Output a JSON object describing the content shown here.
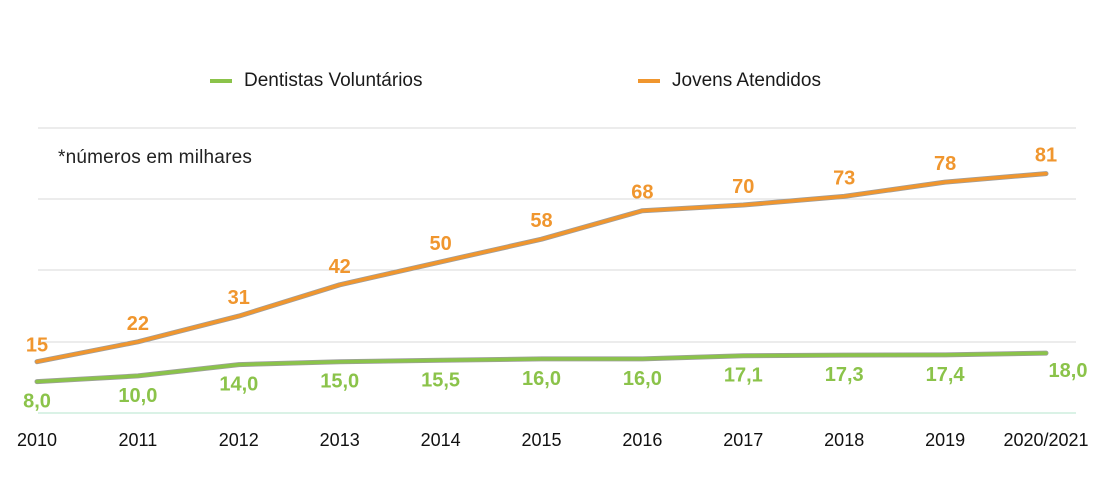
{
  "chart_data": {
    "type": "line",
    "categories": [
      "2010",
      "2011",
      "2012",
      "2013",
      "2014",
      "2015",
      "2016",
      "2017",
      "2018",
      "2019",
      "2020/2021"
    ],
    "series": [
      {
        "name": "Dentistas Voluntários",
        "color": "#8bc34a",
        "values": [
          8.0,
          10.0,
          14.0,
          15.0,
          15.5,
          16.0,
          16.0,
          17.1,
          17.3,
          17.4,
          18.0
        ],
        "labels": [
          "8,0",
          "10,0",
          "14,0",
          "15,0",
          "15,5",
          "16,0",
          "16,0",
          "17,1",
          "17,3",
          "17,4",
          "18,0"
        ]
      },
      {
        "name": "Jovens Atendidos",
        "color": "#f0962e",
        "values": [
          15,
          22,
          31,
          42,
          50,
          58,
          68,
          70,
          73,
          78,
          81
        ],
        "labels": [
          "15",
          "22",
          "31",
          "42",
          "50",
          "58",
          "68",
          "70",
          "73",
          "78",
          "81"
        ]
      }
    ],
    "note": "*números em milhares",
    "ylim": [
      -3,
      97
    ],
    "grid": true,
    "legend": "top-center"
  }
}
